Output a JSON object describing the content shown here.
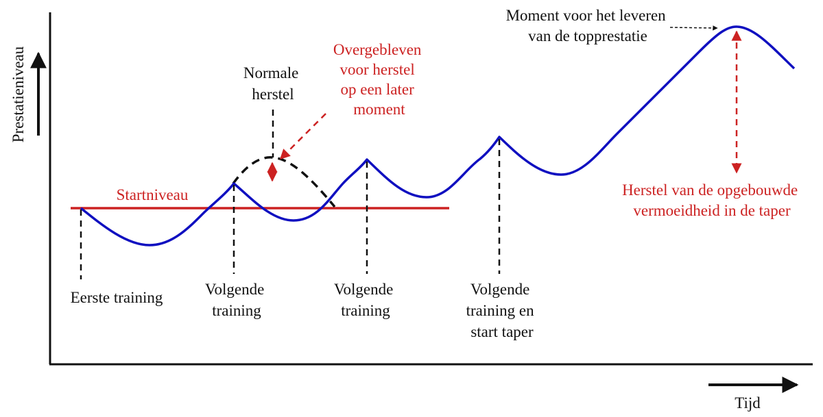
{
  "axes": {
    "y_label": "Prestatieniveau",
    "x_label": "Tijd"
  },
  "labels": {
    "start_level": "Startniveau",
    "normal_recovery": [
      "Normale",
      "herstel"
    ],
    "remaining_recovery": [
      "Overgebleven",
      "voor herstel",
      "op een later",
      "moment"
    ],
    "first_training": "Eerste training",
    "next_training_1": [
      "Volgende",
      "training"
    ],
    "next_training_2": [
      "Volgende",
      "training"
    ],
    "next_training_taper": [
      "Volgende",
      "training en",
      "start taper"
    ],
    "peak_moment": [
      "Moment voor het leveren",
      "van de topprestatie"
    ],
    "taper_recovery": [
      "Herstel van de opgebouwde",
      "vermoeidheid in de taper"
    ]
  },
  "colors": {
    "performance_curve": "#1010c0",
    "start_level_line": "#cc2222",
    "accent_text": "#cc2222",
    "axis": "#111111"
  }
}
